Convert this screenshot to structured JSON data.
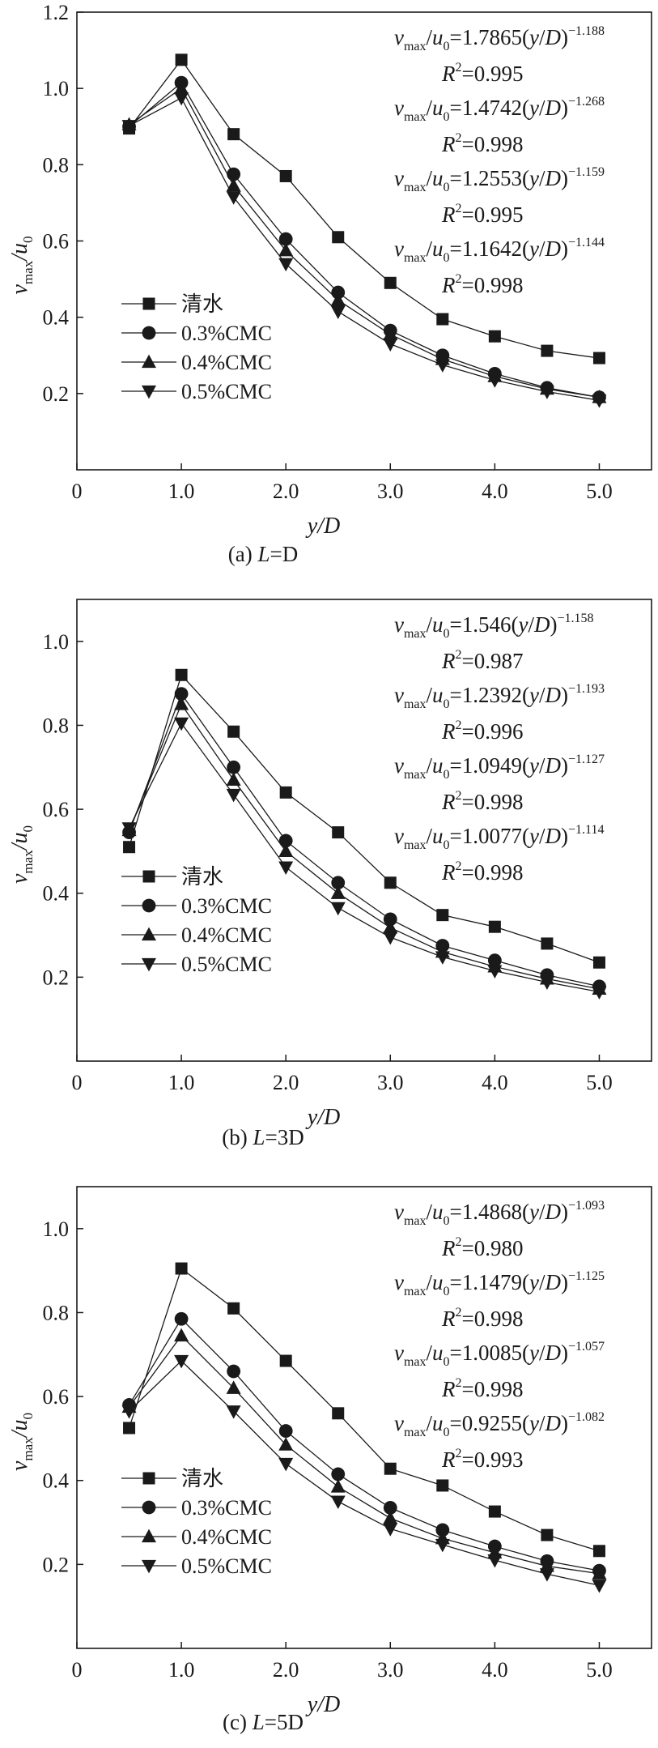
{
  "figure_title": "",
  "colors": {
    "ink": "#1a1a1a",
    "background": "#ffffff"
  },
  "chart_data": [
    {
      "type": "line",
      "id": "a",
      "caption_prefix": "(a) ",
      "caption_var": "L",
      "caption_rest": "=D",
      "caption": "(a) L=D",
      "xlabel": "y/D",
      "ylabel": "vmax/u0",
      "xlim": [
        0,
        5.5
      ],
      "ylim": [
        0,
        1.2
      ],
      "xticks": [
        0,
        1,
        2,
        3,
        4,
        5
      ],
      "xtick_labels": [
        "0",
        "1.0",
        "2.0",
        "3.0",
        "4.0",
        "5.0"
      ],
      "yticks": [
        0.2,
        0.4,
        0.6,
        0.8,
        1.0,
        1.2
      ],
      "ytick_labels": [
        "0.2",
        "0.4",
        "0.6",
        "0.8",
        "1.0",
        "1.2"
      ],
      "x": [
        0.5,
        1.0,
        1.5,
        2.0,
        2.5,
        3.0,
        3.5,
        4.0,
        4.5,
        5.0
      ],
      "series": [
        {
          "name": "清水",
          "marker": "square",
          "values": [
            0.895,
            1.075,
            0.88,
            0.77,
            0.61,
            0.49,
            0.395,
            0.35,
            0.312,
            0.293
          ]
        },
        {
          "name": "0.3%CMC",
          "marker": "circle",
          "values": [
            0.9,
            1.015,
            0.775,
            0.605,
            0.465,
            0.365,
            0.3,
            0.252,
            0.215,
            0.19
          ]
        },
        {
          "name": "0.4%CMC",
          "marker": "triangle-up",
          "values": [
            0.905,
            1.0,
            0.745,
            0.575,
            0.445,
            0.355,
            0.29,
            0.245,
            0.212,
            0.19
          ]
        },
        {
          "name": "0.5%CMC",
          "marker": "triangle-down",
          "values": [
            0.902,
            0.975,
            0.715,
            0.54,
            0.415,
            0.33,
            0.275,
            0.235,
            0.205,
            0.182
          ]
        }
      ],
      "equations": [
        {
          "coef": "1.7865",
          "exp": "−1.188",
          "r2": "0.995"
        },
        {
          "coef": "1.4742",
          "exp": "−1.268",
          "r2": "0.998"
        },
        {
          "coef": "1.2553",
          "exp": "−1.159",
          "r2": "0.995"
        },
        {
          "coef": "1.1642",
          "exp": "−1.144",
          "r2": "0.998"
        }
      ]
    },
    {
      "type": "line",
      "id": "b",
      "caption_prefix": "(b) ",
      "caption_var": "L",
      "caption_rest": "=3D",
      "caption": "(b) L=3D",
      "xlabel": "y/D",
      "ylabel": "vmax/u0",
      "xlim": [
        0,
        5.5
      ],
      "ylim": [
        0,
        1.1
      ],
      "xticks": [
        0,
        1,
        2,
        3,
        4,
        5
      ],
      "xtick_labels": [
        "0",
        "1.0",
        "2.0",
        "3.0",
        "4.0",
        "5.0"
      ],
      "yticks": [
        0.2,
        0.4,
        0.6,
        0.8,
        1.0
      ],
      "ytick_labels": [
        "0.2",
        "0.4",
        "0.6",
        "0.8",
        "1.0"
      ],
      "x": [
        0.5,
        1.0,
        1.5,
        2.0,
        2.5,
        3.0,
        3.5,
        4.0,
        4.5,
        5.0
      ],
      "series": [
        {
          "name": "清水",
          "marker": "square",
          "values": [
            0.51,
            0.92,
            0.785,
            0.64,
            0.545,
            0.425,
            0.348,
            0.32,
            0.28,
            0.235
          ]
        },
        {
          "name": "0.3%CMC",
          "marker": "circle",
          "values": [
            0.545,
            0.875,
            0.7,
            0.525,
            0.425,
            0.338,
            0.275,
            0.24,
            0.205,
            0.178
          ]
        },
        {
          "name": "0.4%CMC",
          "marker": "triangle-up",
          "values": [
            0.55,
            0.85,
            0.67,
            0.5,
            0.4,
            0.318,
            0.26,
            0.225,
            0.196,
            0.172
          ]
        },
        {
          "name": "0.5%CMC",
          "marker": "triangle-down",
          "values": [
            0.555,
            0.805,
            0.635,
            0.462,
            0.365,
            0.295,
            0.248,
            0.215,
            0.188,
            0.165
          ]
        }
      ],
      "equations": [
        {
          "coef": "1.546",
          "exp": "−1.158",
          "r2": "0.987"
        },
        {
          "coef": "1.2392",
          "exp": "−1.193",
          "r2": "0.996"
        },
        {
          "coef": "1.0949",
          "exp": "−1.127",
          "r2": "0.998"
        },
        {
          "coef": "1.0077",
          "exp": "−1.114",
          "r2": "0.998"
        }
      ]
    },
    {
      "type": "line",
      "id": "c",
      "caption_prefix": "(c) ",
      "caption_var": "L",
      "caption_rest": "=5D",
      "caption": "(c) L=5D",
      "xlabel": "y/D",
      "ylabel": "vmax/u0",
      "xlim": [
        0,
        5.5
      ],
      "ylim": [
        0,
        1.1
      ],
      "xticks": [
        0,
        1,
        2,
        3,
        4,
        5
      ],
      "xtick_labels": [
        "0",
        "1.0",
        "2.0",
        "3.0",
        "4.0",
        "5.0"
      ],
      "yticks": [
        0.2,
        0.4,
        0.6,
        0.8,
        1.0
      ],
      "ytick_labels": [
        "0.2",
        "0.4",
        "0.6",
        "0.8",
        "1.0"
      ],
      "x": [
        0.5,
        1.0,
        1.5,
        2.0,
        2.5,
        3.0,
        3.5,
        4.0,
        4.5,
        5.0
      ],
      "series": [
        {
          "name": "清水",
          "marker": "square",
          "values": [
            0.525,
            0.905,
            0.81,
            0.685,
            0.56,
            0.428,
            0.388,
            0.326,
            0.27,
            0.232
          ]
        },
        {
          "name": "0.3%CMC",
          "marker": "circle",
          "values": [
            0.58,
            0.785,
            0.66,
            0.518,
            0.415,
            0.335,
            0.282,
            0.243,
            0.208,
            0.185
          ]
        },
        {
          "name": "0.4%CMC",
          "marker": "triangle-up",
          "values": [
            0.575,
            0.745,
            0.62,
            0.485,
            0.385,
            0.31,
            0.262,
            0.228,
            0.196,
            0.178
          ]
        },
        {
          "name": "0.5%CMC",
          "marker": "triangle-down",
          "values": [
            0.565,
            0.685,
            0.565,
            0.44,
            0.35,
            0.285,
            0.247,
            0.21,
            0.177,
            0.15
          ]
        }
      ],
      "equations": [
        {
          "coef": "1.4868",
          "exp": "−1.093",
          "r2": "0.980"
        },
        {
          "coef": "1.1479",
          "exp": "−1.125",
          "r2": "0.998"
        },
        {
          "coef": "1.0085",
          "exp": "−1.057",
          "r2": "0.998"
        },
        {
          "coef": "0.9255",
          "exp": "−1.082",
          "r2": "0.993"
        }
      ]
    }
  ]
}
